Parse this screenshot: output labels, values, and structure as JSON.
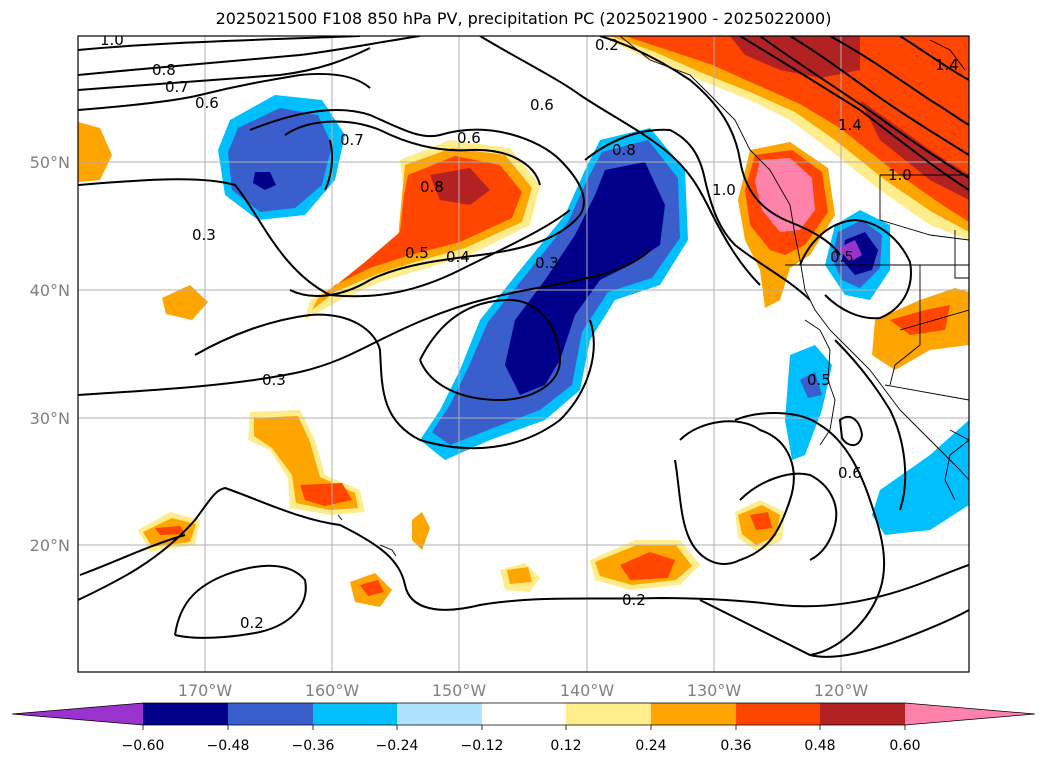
{
  "title": "2025021500 F108 850 hPa PV, precipitation PC (2025021900 - 2025022000)",
  "lat_labels": [
    "50°N",
    "40°N",
    "30°N",
    "20°N"
  ],
  "lon_labels": [
    "170°W",
    "160°W",
    "150°W",
    "140°W",
    "130°W",
    "120°W"
  ],
  "contour_labels": [
    "1.0",
    "0.8",
    "0.7",
    "0.6",
    "0.7",
    "0.6",
    "0.6",
    "0.8",
    "0.5",
    "0.4",
    "0.3",
    "0.3",
    "0.3",
    "0.8",
    "1.0",
    "1.4",
    "1.0",
    "0.5",
    "0.2",
    "0.5",
    "0.6",
    "0.2",
    "0.2",
    "1.4"
  ],
  "colorbar": {
    "ticks": [
      "−0.60",
      "−0.48",
      "−0.36",
      "−0.24",
      "−0.12",
      "0.12",
      "0.24",
      "0.36",
      "0.48",
      "0.60"
    ],
    "colors": [
      "#9a32cd",
      "#00008b",
      "#3a5fcd",
      "#00bfff",
      "#b0e2ff",
      "#ffffff",
      "#ffec8b",
      "#ffa500",
      "#ff4500",
      "#b22222",
      "#ff82ab"
    ]
  }
}
